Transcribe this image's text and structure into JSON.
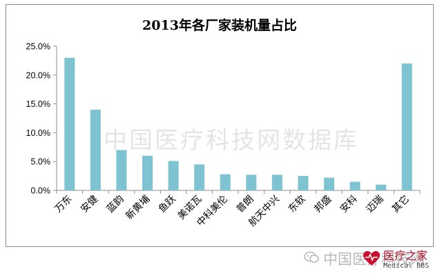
{
  "chart_data": {
    "type": "bar",
    "title": "2013年各厂家装机量占比",
    "categories": [
      "万东",
      "安健",
      "蓝韵",
      "新黄埔",
      "鱼跃",
      "美诺瓦",
      "中科美伦",
      "普朗",
      "航天中兴",
      "东软",
      "邦盛",
      "安科",
      "迈瑞",
      "其它"
    ],
    "values": [
      23.0,
      14.0,
      7.0,
      6.0,
      5.1,
      4.5,
      2.8,
      2.7,
      2.7,
      2.5,
      2.2,
      1.5,
      1.0,
      22.0
    ],
    "ylim": [
      0,
      25
    ],
    "yticks": [
      "0.0%",
      "5.0%",
      "10.0%",
      "15.0%",
      "20.0%",
      "25.0%"
    ],
    "grid": false,
    "bar_color": "#7ec3d2",
    "axis_color": "#8c8c8c"
  },
  "watermark": "中国医疗科技网数据库",
  "footer": {
    "wechat_name": "中国医疗科技网",
    "brand_cn": "医疗之家",
    "brand_en": "Medical BBS"
  }
}
